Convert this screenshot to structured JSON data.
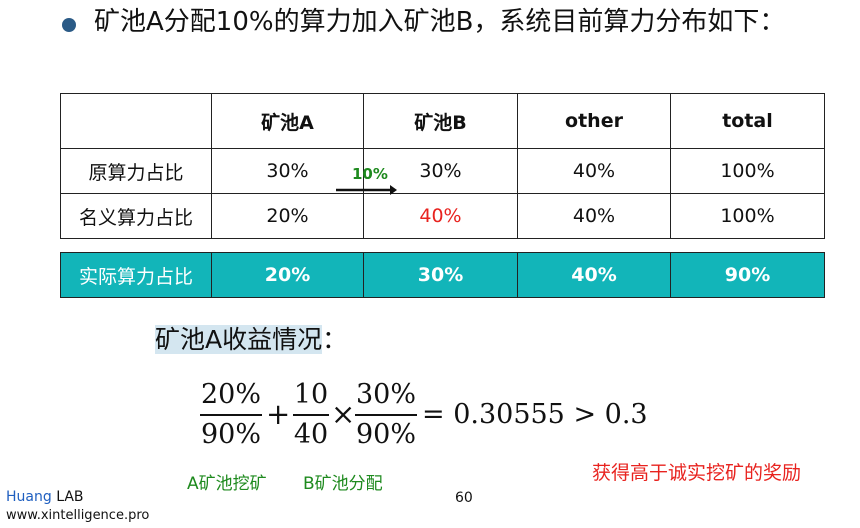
{
  "title": "矿池A分配10%的算力加入矿池B，系统目前算力分布如下：",
  "table": {
    "headers": [
      "",
      "矿池A",
      "矿池B",
      "other",
      "total"
    ],
    "rows": [
      {
        "label": "原算力占比",
        "values": [
          "30%",
          "30%",
          "40%",
          "100%"
        ]
      },
      {
        "label": "名义算力占比",
        "values": [
          "20%",
          "40%",
          "40%",
          "100%"
        ]
      }
    ],
    "actual": {
      "label": "实际算力占比",
      "values": [
        "20%",
        "30%",
        "40%",
        "90%"
      ]
    },
    "highlight_color": "#e8231f",
    "actual_row_color": "#12b5b9"
  },
  "arrow": {
    "label": "10%",
    "color": "#1e8a1e"
  },
  "revenue_heading": "矿池A收益情况",
  "revenue_colon": "：",
  "formula": {
    "frac1": {
      "num": "20%",
      "den": "90%"
    },
    "plus": "+",
    "frac2": {
      "num": "10",
      "den": "40"
    },
    "times": "×",
    "frac3": {
      "num": "30%",
      "den": "90%"
    },
    "rhs": "= 0.30555 > 0.3"
  },
  "label_a": "A矿池挖矿",
  "label_b": "B矿池分配",
  "reward_note": "获得高于诚实挖矿的奖励",
  "footer": {
    "brand_colored": "Huang",
    "brand_rest": " LAB",
    "url": "www.xintelligence.pro",
    "page": "60"
  }
}
